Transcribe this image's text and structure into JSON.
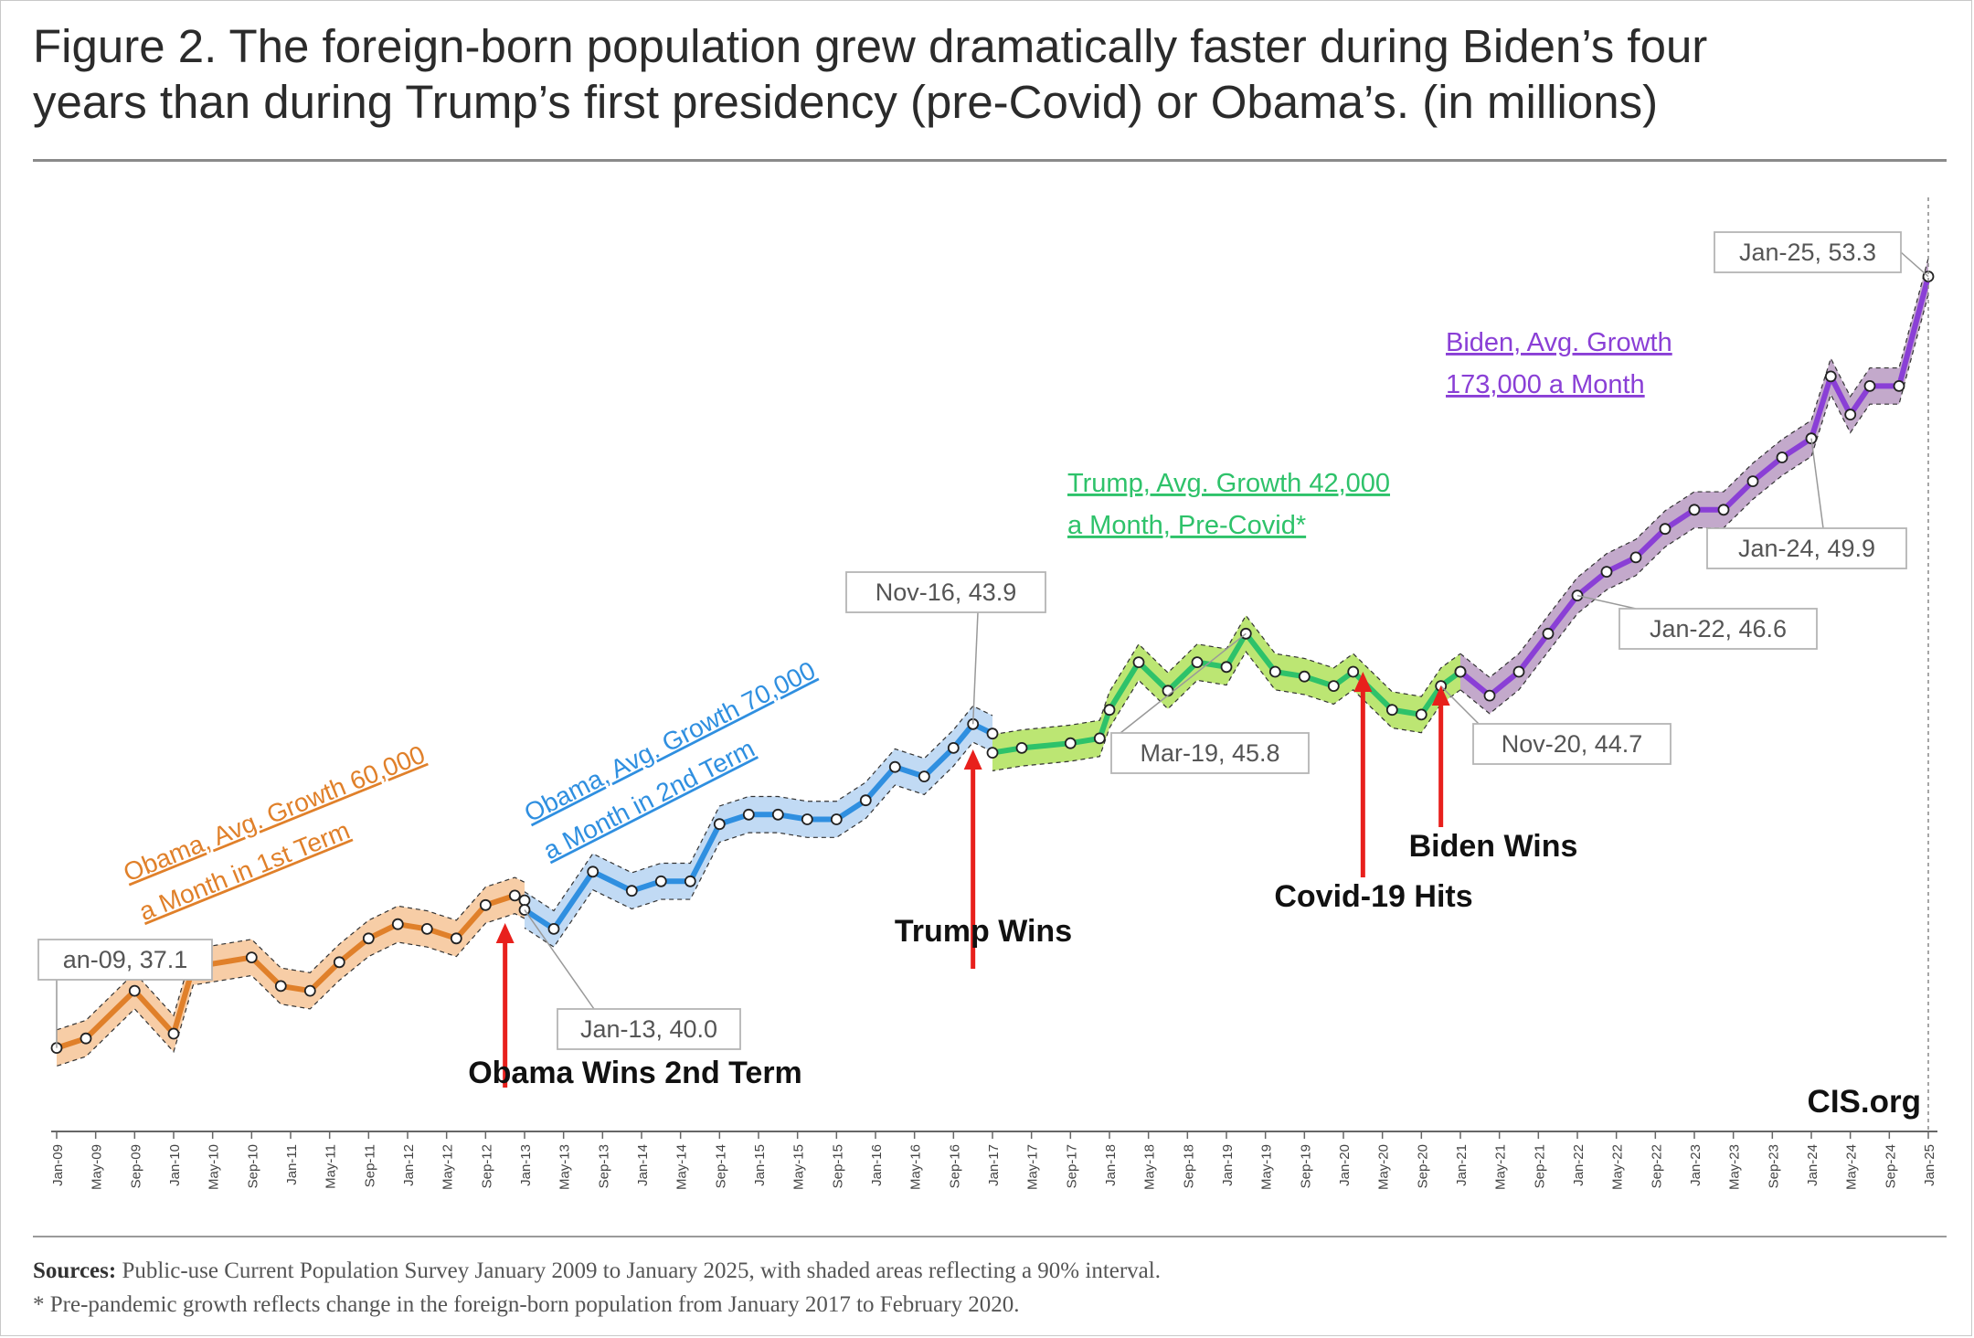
{
  "title_line1": "Figure 2. The foreign-born population grew dramatically faster during Biden’s four",
  "title_line2": "years than during Trump’s first presidency (pre-Covid) or Obama’s. (in millions)",
  "sources_label": "Sources:",
  "sources_text": "Public-use Current Population Survey January 2009 to January 2025, with shaded areas reflecting a 90% interval.",
  "footnote": "* Pre-pandemic growth reflects change in the foreign-born population from January 2017 to February 2020.",
  "watermark": "CIS.org",
  "colors": {
    "obama1": "#e0802a",
    "obama1_band": "#f6c497",
    "obama2": "#2f8fe0",
    "obama2_band": "#b6d4f2",
    "trump": "#2ec26a",
    "trump_band": "#b0e25a",
    "biden": "#8a3fd6",
    "biden_band": "#b99ac2",
    "arrow": "#e8201c"
  },
  "chart_data": {
    "type": "line",
    "title": "Figure 2. The foreign-born population grew dramatically faster during Biden’s four years than during Trump’s first presidency (pre-Covid) or Obama’s. (in millions)",
    "xlabel": "",
    "ylabel": "",
    "ylim": [
      35.5,
      54.5
    ],
    "grid": false,
    "interval": "90%",
    "x_tick_labels": [
      "Jan-09",
      "May-09",
      "Sep-09",
      "Jan-10",
      "May-10",
      "Sep-10",
      "Jan-11",
      "May-11",
      "Sep-11",
      "Jan-12",
      "May-12",
      "Sep-12",
      "Jan-13",
      "May-13",
      "Sep-13",
      "Jan-14",
      "May-14",
      "Sep-14",
      "Jan-15",
      "May-15",
      "Sep-15",
      "Jan-16",
      "May-16",
      "Sep-16",
      "Jan-17",
      "May-17",
      "Sep-17",
      "Jan-18",
      "May-18",
      "Sep-18",
      "Jan-19",
      "May-19",
      "Sep-19",
      "Jan-20",
      "May-20",
      "Sep-20",
      "Jan-21",
      "May-21",
      "Sep-21",
      "Jan-22",
      "May-22",
      "Sep-22",
      "Jan-23",
      "May-23",
      "Sep-23",
      "Jan-24",
      "May-24",
      "Sep-24",
      "Jan-25"
    ],
    "series": [
      {
        "key": "obama1",
        "months": [
          "2009-01",
          "2009-04",
          "2009-09",
          "2010-01",
          "2010-03",
          "2010-09",
          "2010-12",
          "2011-03",
          "2011-06",
          "2011-09",
          "2011-12",
          "2012-03",
          "2012-06",
          "2012-09",
          "2012-12",
          "2013-01"
        ],
        "values": [
          37.1,
          37.3,
          38.3,
          37.4,
          38.8,
          39.0,
          38.4,
          38.3,
          38.9,
          39.4,
          39.7,
          39.6,
          39.4,
          40.1,
          40.3,
          40.2
        ]
      },
      {
        "key": "obama2",
        "months": [
          "2013-01",
          "2013-04",
          "2013-08",
          "2013-12",
          "2014-03",
          "2014-06",
          "2014-09",
          "2014-12",
          "2015-03",
          "2015-06",
          "2015-09",
          "2015-12",
          "2016-03",
          "2016-06",
          "2016-09",
          "2016-11",
          "2017-01"
        ],
        "values": [
          40.0,
          39.6,
          40.8,
          40.4,
          40.6,
          40.6,
          41.8,
          42.0,
          42.0,
          41.9,
          41.9,
          42.3,
          43.0,
          42.8,
          43.4,
          43.9,
          43.7
        ]
      },
      {
        "key": "trump",
        "months": [
          "2017-01",
          "2017-04",
          "2017-09",
          "2017-12",
          "2018-01",
          "2018-04",
          "2018-07",
          "2018-10",
          "2019-01",
          "2019-03",
          "2019-06",
          "2019-09",
          "2019-12",
          "2020-02",
          "2020-06",
          "2020-09",
          "2020-11",
          "2021-01"
        ],
        "values": [
          43.3,
          43.4,
          43.5,
          43.6,
          44.2,
          45.2,
          44.6,
          45.2,
          45.1,
          45.8,
          45.0,
          44.9,
          44.7,
          45.0,
          44.2,
          44.1,
          44.7,
          45.0
        ]
      },
      {
        "key": "biden",
        "months": [
          "2021-01",
          "2021-04",
          "2021-07",
          "2021-10",
          "2022-01",
          "2022-04",
          "2022-07",
          "2022-10",
          "2023-01",
          "2023-04",
          "2023-07",
          "2023-10",
          "2024-01",
          "2024-03",
          "2024-05",
          "2024-07",
          "2024-10",
          "2025-01"
        ],
        "values": [
          45.0,
          44.5,
          45.0,
          45.8,
          46.6,
          47.1,
          47.4,
          48.0,
          48.4,
          48.4,
          49.0,
          49.5,
          49.9,
          51.2,
          50.4,
          51.0,
          51.0,
          53.3
        ]
      }
    ],
    "point_labels": [
      {
        "text": "an-09,  37.1"
      },
      {
        "text": "Jan-13, 40.0"
      },
      {
        "text": "Nov-16,  43.9"
      },
      {
        "text": "Mar-19,  45.8"
      },
      {
        "text": "Nov-20,  44.7"
      },
      {
        "text": "Jan-22,  46.6"
      },
      {
        "text": "Jan-24,  49.9"
      },
      {
        "text": "Jan-25,  53.3"
      }
    ],
    "annotations": [
      {
        "key": "obama1",
        "lines": [
          "Obama, Avg. Growth 60,000",
          "a Month in 1st  Term"
        ]
      },
      {
        "key": "obama2",
        "lines": [
          "Obama, Avg. Growth 70,000",
          "a Month in 2nd Term"
        ]
      },
      {
        "key": "trump",
        "lines": [
          "Trump, Avg. Growth 42,000",
          "a Month, Pre-Covid*"
        ]
      },
      {
        "key": "biden",
        "lines": [
          "Biden, Avg. Growth",
          "173,000 a Month"
        ]
      }
    ],
    "events": [
      {
        "month": "2012-11",
        "text": "Obama Wins 2nd Term"
      },
      {
        "month": "2016-11",
        "text": "Trump Wins"
      },
      {
        "month": "2020-03",
        "text": "Covid-19 Hits"
      },
      {
        "month": "2020-11",
        "text": "Biden Wins"
      }
    ]
  }
}
